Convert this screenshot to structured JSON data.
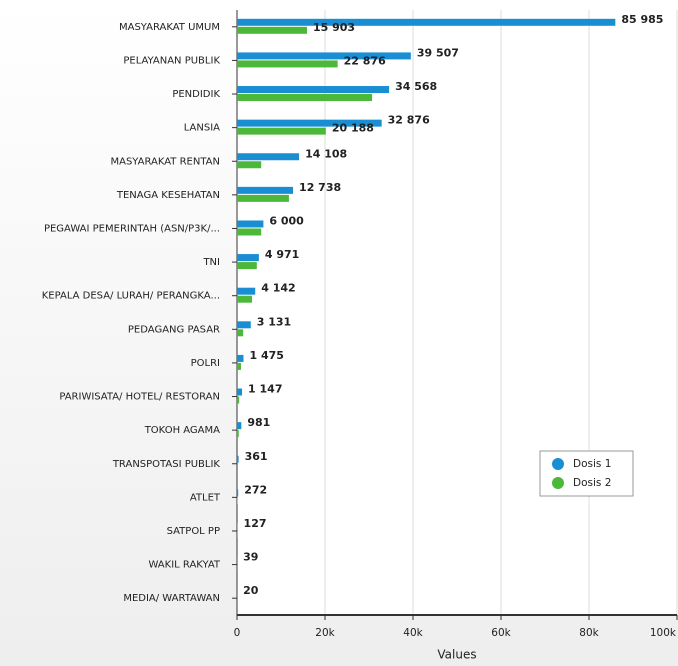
{
  "chart_data": {
    "type": "hbar",
    "x_label": "Values",
    "categories": [
      "MASYARAKAT UMUM",
      "PELAYANAN PUBLIK",
      "PENDIDIK",
      "LANSIA",
      "MASYARAKAT RENTAN",
      "TENAGA KESEHATAN",
      "PEGAWAI PEMERINTAH (ASN/P3K/...",
      "TNI",
      "KEPALA DESA/ LURAH/ PERANGKA...",
      "PEDAGANG PASAR",
      "POLRI",
      "PARIWISATA/ HOTEL/ RESTORAN",
      "TOKOH AGAMA",
      "TRANSPOTASI PUBLIK",
      "ATLET",
      "SATPOL PP",
      "WAKIL RAKYAT",
      "MEDIA/ WARTAWAN"
    ],
    "series": [
      {
        "name": "Dosis 1",
        "color": "#1a8ed3",
        "values": [
          85985,
          39507,
          34568,
          32876,
          14108,
          12738,
          6000,
          4971,
          4142,
          3131,
          1475,
          1147,
          981,
          361,
          272,
          127,
          39,
          20
        ],
        "value_labels": [
          "85 985",
          "39 507",
          "34 568",
          "32 876",
          "14 108",
          "12 738",
          "6 000",
          "4 971",
          "4 142",
          "3 131",
          "1 475",
          "1 147",
          "981",
          "361",
          "272",
          "127",
          "39",
          "20"
        ]
      },
      {
        "name": "Dosis 2",
        "color": "#4cb83a",
        "values": [
          15903,
          22876,
          30700,
          20188,
          5500,
          11800,
          5500,
          4500,
          3400,
          1400,
          900,
          500,
          400,
          200,
          100,
          50,
          20,
          10
        ],
        "value_labels": [
          "15 903",
          "22 876",
          null,
          "20 188",
          null,
          null,
          null,
          null,
          null,
          null,
          null,
          null,
          null,
          null,
          null,
          null,
          null,
          null
        ]
      }
    ],
    "xlim": [
      0,
      100000
    ],
    "xticks": [
      0,
      {
        "value": 20000,
        "label": "20k"
      },
      {
        "value": 40000,
        "label": "40k"
      },
      {
        "value": 60000,
        "label": "60k"
      },
      {
        "value": 80000,
        "label": "80k"
      },
      {
        "value": 100000,
        "label": "100k"
      }
    ],
    "grid": true,
    "legend": "lower-right"
  }
}
